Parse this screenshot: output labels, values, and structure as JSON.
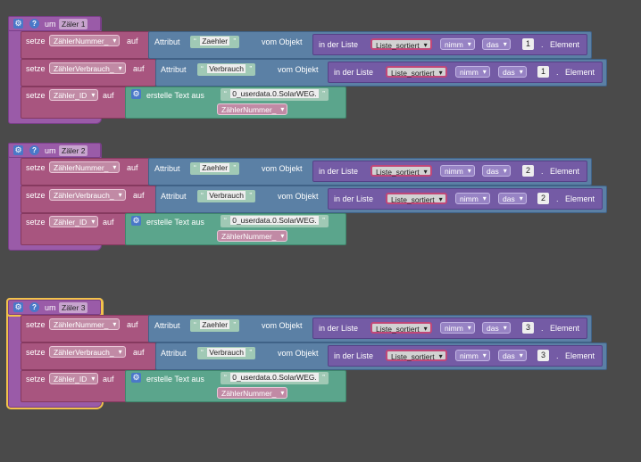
{
  "groups": [
    {
      "name": "Zäler 1",
      "index": "1"
    },
    {
      "name": "Zäler 2",
      "index": "2"
    },
    {
      "name": "Zäler 3",
      "index": "3"
    }
  ],
  "labels": {
    "um": "um",
    "setze": "setze",
    "auf": "auf",
    "attribut": "Attribut",
    "vom_objekt": "vom Objekt",
    "in_der_liste": "in der Liste",
    "element": "Element",
    "dot": ".",
    "erstelle_text": "erstelle Text aus",
    "open_quote": "“",
    "close_quote": "”"
  },
  "vars": {
    "nummer": "ZählerNummer_",
    "verbrauch": "ZählerVerbrauch_",
    "id": "Zähler_ID"
  },
  "strings": {
    "zaehler": "Zaehler",
    "verbrauch": "Verbrauch",
    "prefix": "0_userdata.0.SolarWEG."
  },
  "list": {
    "name": "Liste_sortiert",
    "nimm": "nimm",
    "das": "das"
  },
  "icons": {
    "gear": "gear-icon",
    "help": "help-icon",
    "accent": "#f2c24b"
  }
}
